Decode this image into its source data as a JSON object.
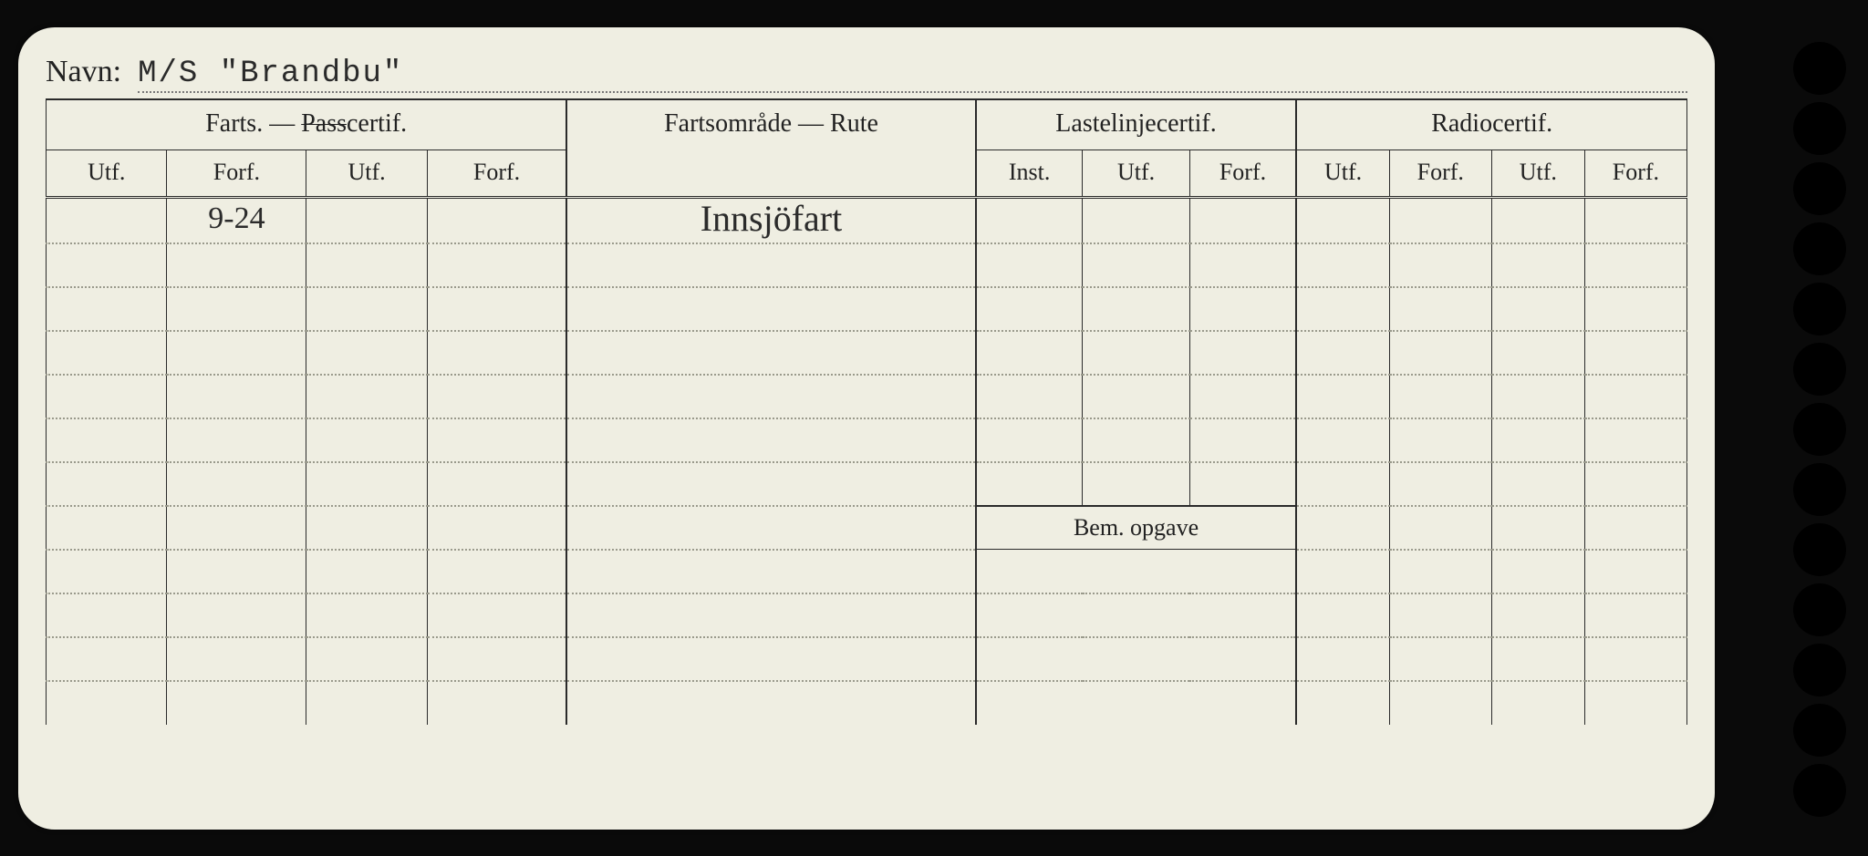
{
  "navn_label": "Navn:",
  "navn_value": "M/S \"Brandbu\"",
  "groups": {
    "farts": "Farts. — Passcertif.",
    "farts_struck_word": "Pass",
    "rute": "Fartsområde — Rute",
    "laste": "Lastelinjecertif.",
    "radio": "Radiocertif."
  },
  "sub": {
    "utf": "Utf.",
    "forf": "Forf.",
    "inst": "Inst."
  },
  "bem": "Bem. opgave",
  "rows": [
    {
      "farts_forf": "9-24",
      "rute": "Innsjöfart"
    },
    {},
    {},
    {},
    {},
    {},
    {},
    {},
    {},
    {},
    {},
    {}
  ],
  "colors": {
    "paper": "#efeee2",
    "ink": "#2a2a2a",
    "dotted": "#9a9a8c",
    "background": "#0a0a0a"
  }
}
